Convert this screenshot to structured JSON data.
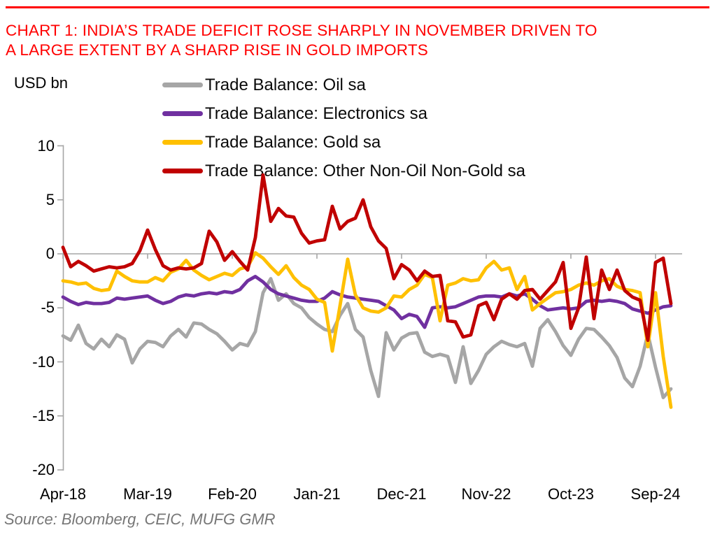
{
  "page": {
    "title_line1": "CHART 1: INDIA’S TRADE DEFICIT ROSE SHARPLY IN NOVEMBER DRIVEN TO",
    "title_line2": "A LARGE EXTENT BY A SHARP RISE IN GOLD IMPORTS",
    "title_color": "#FF0000",
    "top_rule_color": "#FF0000",
    "source_note": "Source: Bloomberg, CEIC, MUFG GMR",
    "y_axis_unit_label": "USD bn"
  },
  "chart_data": {
    "type": "line",
    "title": "CHART 1: INDIA’S TRADE DEFICIT ROSE SHARPLY IN NOVEMBER DRIVEN TO A LARGE EXTENT BY A SHARP RISE IN GOLD IMPORTS",
    "ylabel": "USD bn",
    "ylim": [
      -20,
      10
    ],
    "y_ticks": [
      10,
      5,
      0,
      -5,
      -10,
      -15,
      -20
    ],
    "x_range": "Apr-2018 to Nov-2024, monthly (80 points)",
    "x_tick_labels": [
      "Apr-18",
      "Mar-19",
      "Feb-20",
      "Jan-21",
      "Dec-21",
      "Nov-22",
      "Oct-23",
      "Sep-24"
    ],
    "x_tick_indices": [
      0,
      11,
      22,
      33,
      44,
      55,
      66,
      77
    ],
    "legend_position": "top",
    "grid": "zero-line-only",
    "axis_color": "#A6A6A6",
    "series": [
      {
        "name": "Trade Balance: Oil sa",
        "color": "#A6A6A6",
        "values": [
          -7.6,
          -8.0,
          -6.6,
          -8.3,
          -8.8,
          -7.9,
          -8.6,
          -7.5,
          -7.9,
          -10.1,
          -8.8,
          -8.1,
          -8.2,
          -8.6,
          -7.6,
          -7.0,
          -7.7,
          -6.4,
          -6.5,
          -7.0,
          -7.4,
          -8.1,
          -8.9,
          -8.3,
          -8.5,
          -7.2,
          -3.6,
          -2.3,
          -4.3,
          -3.7,
          -4.6,
          -5.0,
          -5.9,
          -6.5,
          -7.0,
          -7.2,
          -5.7,
          -4.6,
          -7.0,
          -7.7,
          -10.8,
          -13.2,
          -7.3,
          -8.9,
          -7.8,
          -7.4,
          -7.3,
          -9.1,
          -9.5,
          -9.3,
          -9.5,
          -11.9,
          -8.6,
          -12.0,
          -10.8,
          -9.3,
          -8.6,
          -8.1,
          -8.4,
          -8.6,
          -8.3,
          -10.4,
          -6.9,
          -6.1,
          -7.2,
          -8.5,
          -9.4,
          -7.9,
          -6.9,
          -7.0,
          -7.7,
          -8.5,
          -9.6,
          -11.5,
          -12.3,
          -10.4,
          -7.4,
          -10.5,
          -13.3,
          -12.5
        ]
      },
      {
        "name": "Trade Balance: Electronics sa",
        "color": "#7030A0",
        "values": [
          -4.0,
          -4.4,
          -4.7,
          -4.5,
          -4.6,
          -4.6,
          -4.5,
          -4.1,
          -4.2,
          -4.1,
          -4.0,
          -3.9,
          -4.3,
          -4.6,
          -4.4,
          -4.0,
          -3.8,
          -3.9,
          -3.7,
          -3.6,
          -3.7,
          -3.5,
          -3.6,
          -3.3,
          -2.5,
          -2.1,
          -2.6,
          -3.3,
          -3.7,
          -3.9,
          -4.1,
          -4.3,
          -4.4,
          -4.4,
          -4.1,
          -3.5,
          -3.8,
          -4.0,
          -4.1,
          -4.2,
          -4.3,
          -4.4,
          -4.8,
          -5.2,
          -6.0,
          -5.6,
          -5.8,
          -6.8,
          -5.0,
          -4.9,
          -5.0,
          -4.9,
          -4.6,
          -4.3,
          -4.0,
          -3.9,
          -3.9,
          -4.0,
          -3.7,
          -3.9,
          -3.7,
          -4.2,
          -4.8,
          -5.2,
          -5.1,
          -5.0,
          -5.1,
          -5.0,
          -4.4,
          -4.3,
          -4.4,
          -4.3,
          -4.4,
          -4.6,
          -5.1,
          -5.3,
          -5.5,
          -5.2,
          -4.9,
          -4.8
        ]
      },
      {
        "name": "Trade Balance: Gold sa",
        "color": "#FFC000",
        "values": [
          -2.5,
          -2.6,
          -2.8,
          -2.7,
          -3.2,
          -3.4,
          -3.3,
          -1.6,
          -2.1,
          -2.5,
          -2.6,
          -2.6,
          -2.2,
          -2.5,
          -1.7,
          -1.4,
          -0.6,
          -1.5,
          -2.0,
          -2.4,
          -2.1,
          -1.8,
          -2.0,
          -1.4,
          -1.2,
          0.1,
          -0.4,
          -1.2,
          -1.9,
          -1.1,
          -2.2,
          -2.9,
          -3.3,
          -4.2,
          -4.5,
          -9.0,
          -4.8,
          -0.5,
          -3.8,
          -5.0,
          -5.3,
          -5.4,
          -5.0,
          -3.9,
          -4.0,
          -3.3,
          -2.9,
          -1.9,
          -2.2,
          -6.2,
          -2.9,
          -2.7,
          -2.3,
          -2.5,
          -2.4,
          -1.3,
          -0.7,
          -1.5,
          -1.3,
          -3.3,
          -2.1,
          -5.2,
          -4.6,
          -4.1,
          -3.6,
          -3.5,
          -3.3,
          -2.9,
          -2.7,
          -2.9,
          -2.5,
          -2.3,
          -3.0,
          -3.3,
          -3.4,
          -3.6,
          -8.6,
          -3.6,
          -9.5,
          -14.2
        ]
      },
      {
        "name": "Trade Balance: Other Non-Oil Non-Gold sa",
        "color": "#C00000",
        "values": [
          0.6,
          -1.2,
          -0.7,
          -1.1,
          -1.6,
          -1.4,
          -1.2,
          -1.3,
          -1.2,
          -0.9,
          0.3,
          2.2,
          0.4,
          -1.1,
          -1.5,
          -1.3,
          -1.4,
          -1.3,
          -0.9,
          2.1,
          1.1,
          -0.6,
          0.2,
          -0.7,
          -1.5,
          1.5,
          7.3,
          3.0,
          4.2,
          3.5,
          3.4,
          1.9,
          1.0,
          1.2,
          1.3,
          4.4,
          2.3,
          3.0,
          3.3,
          5.0,
          2.5,
          1.2,
          0.5,
          -2.3,
          -1.0,
          -1.5,
          -2.5,
          -1.6,
          -2.1,
          -2.0,
          -6.2,
          -6.3,
          -7.7,
          -7.5,
          -4.8,
          -4.5,
          -6.1,
          -4.2,
          -3.7,
          -4.2,
          -3.4,
          -3.3,
          -4.2,
          -3.4,
          -2.6,
          -0.8,
          -6.9,
          -5.0,
          -0.3,
          -6.0,
          -1.5,
          -3.3,
          -1.5,
          -3.4,
          -4.0,
          -4.3,
          -8.0,
          -0.8,
          -0.4,
          -4.6
        ]
      }
    ]
  }
}
